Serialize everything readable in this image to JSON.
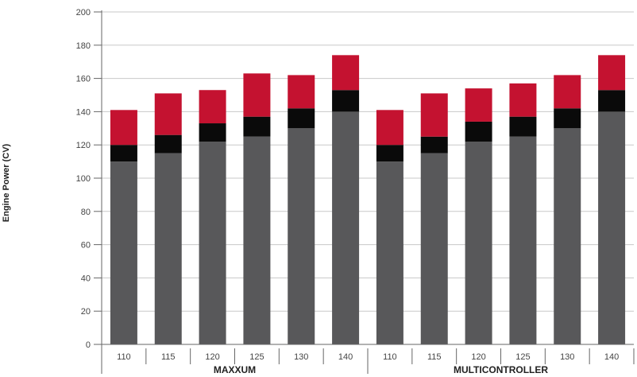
{
  "chart_data": {
    "type": "bar",
    "stacked": true,
    "ylabel": "Engine Power (CV)",
    "ylim": [
      0,
      200
    ],
    "yticks": [
      "0",
      "20",
      "40",
      "60",
      "80",
      "100",
      "120",
      "140",
      "160",
      "180",
      "200"
    ],
    "grid": true,
    "groups": [
      {
        "label": "MAXXUM",
        "categories": [
          "110",
          "115",
          "120",
          "125",
          "130",
          "140"
        ]
      },
      {
        "label": "MULTICONTROLLER",
        "categories": [
          "110",
          "115",
          "120",
          "125",
          "130",
          "140"
        ]
      }
    ],
    "categories": [
      "110",
      "115",
      "120",
      "125",
      "130",
      "140",
      "110",
      "115",
      "120",
      "125",
      "130",
      "140"
    ],
    "series": [
      {
        "values": [
          110,
          115,
          122,
          125,
          130,
          140,
          110,
          115,
          122,
          125,
          130,
          140
        ]
      },
      {
        "values": [
          10,
          11,
          11,
          12,
          12,
          13,
          10,
          10,
          12,
          12,
          12,
          13
        ]
      },
      {
        "values": [
          21,
          25,
          20,
          26,
          20,
          21,
          21,
          26,
          20,
          20,
          20,
          21
        ]
      }
    ]
  },
  "colors": {
    "series": [
      "#58585a",
      "#0a0a0a",
      "#c41230"
    ],
    "grid": "#c8c8c8",
    "axis": "#666666",
    "text": "#444444"
  }
}
